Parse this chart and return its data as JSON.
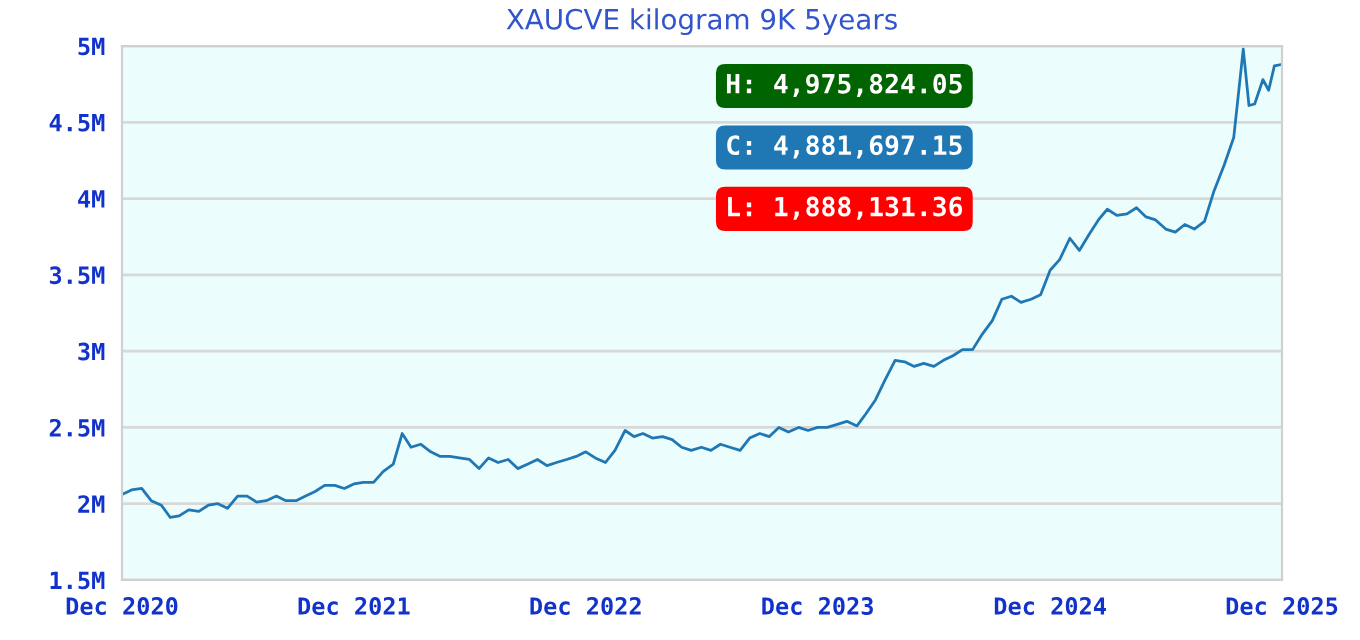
{
  "chart_data": {
    "type": "line",
    "title": "XAUCVE kilogram 9K 5years",
    "x": [
      "2020-12-01",
      "2020-12-16",
      "2021-01-01",
      "2021-01-16",
      "2021-02-01",
      "2021-02-15",
      "2021-03-01",
      "2021-03-16",
      "2021-04-01",
      "2021-04-16",
      "2021-05-01",
      "2021-05-16",
      "2021-06-01",
      "2021-06-16",
      "2021-07-01",
      "2021-07-16",
      "2021-08-01",
      "2021-08-16",
      "2021-09-01",
      "2021-09-16",
      "2021-10-01",
      "2021-10-16",
      "2021-11-01",
      "2021-11-16",
      "2021-12-01",
      "2021-12-16",
      "2022-01-01",
      "2022-01-16",
      "2022-02-01",
      "2022-02-15",
      "2022-03-01",
      "2022-03-16",
      "2022-04-01",
      "2022-04-16",
      "2022-05-01",
      "2022-05-16",
      "2022-06-01",
      "2022-06-16",
      "2022-07-01",
      "2022-07-16",
      "2022-08-01",
      "2022-08-16",
      "2022-09-01",
      "2022-09-16",
      "2022-10-01",
      "2022-10-16",
      "2022-11-01",
      "2022-11-16",
      "2022-12-01",
      "2022-12-16",
      "2023-01-01",
      "2023-01-16",
      "2023-02-01",
      "2023-02-15",
      "2023-03-01",
      "2023-03-16",
      "2023-04-01",
      "2023-04-16",
      "2023-05-01",
      "2023-05-16",
      "2023-06-01",
      "2023-06-16",
      "2023-07-01",
      "2023-07-16",
      "2023-08-01",
      "2023-08-16",
      "2023-09-01",
      "2023-09-16",
      "2023-10-01",
      "2023-10-16",
      "2023-11-01",
      "2023-11-16",
      "2023-12-01",
      "2023-12-16",
      "2024-01-01",
      "2024-01-16",
      "2024-02-01",
      "2024-02-15",
      "2024-03-01",
      "2024-03-16",
      "2024-04-01",
      "2024-04-16",
      "2024-05-01",
      "2024-05-16",
      "2024-06-01",
      "2024-06-16",
      "2024-07-01",
      "2024-07-16",
      "2024-08-01",
      "2024-08-16",
      "2024-09-01",
      "2024-09-16",
      "2024-10-01",
      "2024-10-16",
      "2024-11-01",
      "2024-11-16",
      "2024-12-01",
      "2024-12-16",
      "2025-01-01",
      "2025-01-16",
      "2025-02-01",
      "2025-02-15",
      "2025-03-01",
      "2025-03-16",
      "2025-04-01",
      "2025-04-16",
      "2025-05-01",
      "2025-05-16",
      "2025-06-01",
      "2025-06-16",
      "2025-07-01",
      "2025-07-16",
      "2025-08-01",
      "2025-08-16",
      "2025-09-01",
      "2025-09-16",
      "2025-10-01",
      "2025-10-10",
      "2025-10-19",
      "2025-11-01",
      "2025-11-10",
      "2025-11-19",
      "2025-12-01"
    ],
    "series": [
      {
        "color": "#1f77b4",
        "values": [
          2.06,
          2.09,
          2.1,
          2.02,
          1.99,
          1.91,
          1.92,
          1.96,
          1.95,
          1.99,
          2.0,
          1.97,
          2.05,
          2.05,
          2.01,
          2.02,
          2.05,
          2.02,
          2.02,
          2.05,
          2.08,
          2.12,
          2.12,
          2.1,
          2.13,
          2.14,
          2.14,
          2.21,
          2.26,
          2.46,
          2.37,
          2.39,
          2.34,
          2.31,
          2.31,
          2.3,
          2.29,
          2.23,
          2.3,
          2.27,
          2.29,
          2.23,
          2.26,
          2.29,
          2.25,
          2.27,
          2.29,
          2.31,
          2.34,
          2.3,
          2.27,
          2.35,
          2.48,
          2.44,
          2.46,
          2.43,
          2.44,
          2.42,
          2.37,
          2.35,
          2.37,
          2.35,
          2.39,
          2.37,
          2.35,
          2.43,
          2.46,
          2.44,
          2.5,
          2.47,
          2.5,
          2.48,
          2.5,
          2.5,
          2.52,
          2.54,
          2.51,
          2.59,
          2.68,
          2.81,
          2.94,
          2.93,
          2.9,
          2.92,
          2.9,
          2.94,
          2.97,
          3.01,
          3.01,
          3.11,
          3.2,
          3.34,
          3.36,
          3.32,
          3.34,
          3.37,
          3.53,
          3.6,
          3.74,
          3.66,
          3.77,
          3.86,
          3.93,
          3.89,
          3.9,
          3.94,
          3.88,
          3.86,
          3.8,
          3.78,
          3.83,
          3.8,
          3.85,
          4.05,
          4.22,
          4.4,
          4.98,
          4.61,
          4.62,
          4.78,
          4.71,
          4.87,
          4.88
        ]
      }
    ],
    "xlim": [
      "2020-12-01",
      "2025-12-01"
    ],
    "xticks": [
      {
        "value": "2020-12-01",
        "label": "Dec 2020"
      },
      {
        "value": "2021-12-01",
        "label": "Dec 2021"
      },
      {
        "value": "2022-12-01",
        "label": "Dec 2022"
      },
      {
        "value": "2023-12-01",
        "label": "Dec 2023"
      },
      {
        "value": "2024-12-01",
        "label": "Dec 2024"
      },
      {
        "value": "2025-12-01",
        "label": "Dec 2025"
      }
    ],
    "ylim": [
      1.5,
      5
    ],
    "yticks": [
      {
        "value": 1.5,
        "label": "1.5M"
      },
      {
        "value": 2,
        "label": "2M"
      },
      {
        "value": 2.5,
        "label": "2.5M"
      },
      {
        "value": 3,
        "label": "3M"
      },
      {
        "value": 3.5,
        "label": "3.5M"
      },
      {
        "value": 4,
        "label": "4M"
      },
      {
        "value": 4.5,
        "label": "4.5M"
      },
      {
        "value": 5,
        "label": "5M"
      }
    ],
    "grid": "y",
    "annotations": [
      "H: 4,975,824.05",
      "C: 4,881,697.15",
      "L: 1,888,131.36"
    ]
  }
}
